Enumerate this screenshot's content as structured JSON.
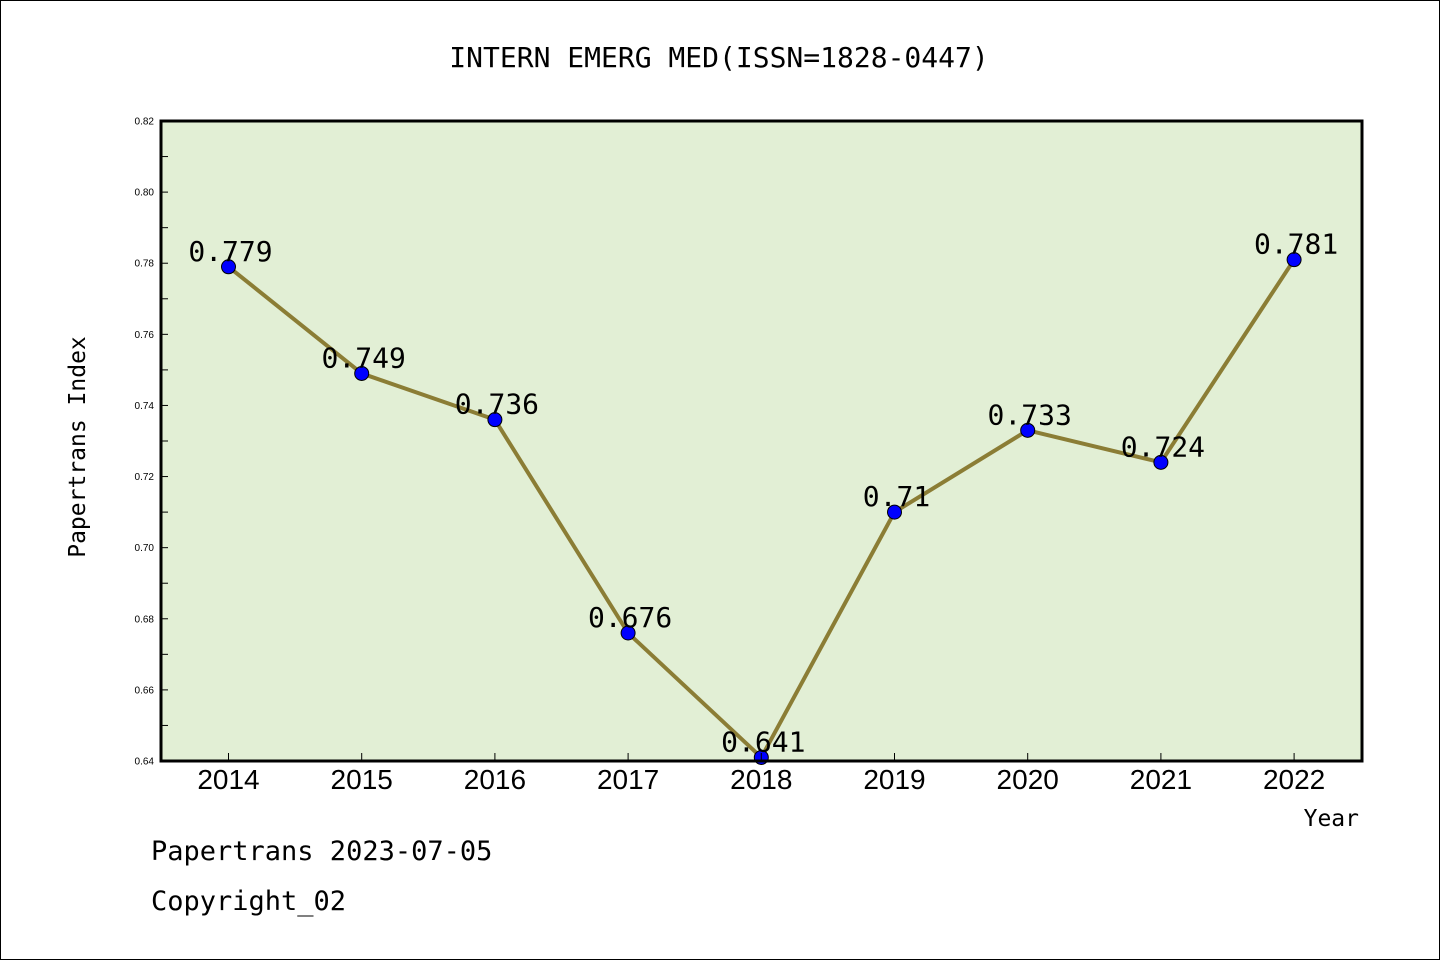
{
  "chart_data": {
    "type": "line",
    "title": "INTERN EMERG MED(ISSN=1828-0447)",
    "xlabel": "Year",
    "ylabel": "Papertrans Index",
    "x": [
      "2014",
      "2015",
      "2016",
      "2017",
      "2018",
      "2019",
      "2020",
      "2021",
      "2022"
    ],
    "series": [
      {
        "values": [
          0.779,
          0.749,
          0.736,
          0.676,
          0.641,
          0.71,
          0.733,
          0.724,
          0.781
        ],
        "labels": [
          "0.779",
          "0.749",
          "0.736",
          "0.676",
          "0.641",
          "0.71",
          "0.733",
          "0.724",
          "0.781"
        ]
      }
    ],
    "ylim": [
      0.64,
      0.82
    ],
    "yticks": [
      "0.64",
      "0.66",
      "0.68",
      "0.70",
      "0.72",
      "0.74",
      "0.76",
      "0.78",
      "0.80",
      "0.82"
    ],
    "grid": false,
    "legend": "none",
    "colors": {
      "plot_background": "#e2efd5",
      "line": "#8b7d35",
      "marker": "#0000ff",
      "axes": "#000000"
    }
  },
  "footer": {
    "source_line": "Papertrans 2023-07-05",
    "copyright_line": "Copyright_02"
  }
}
